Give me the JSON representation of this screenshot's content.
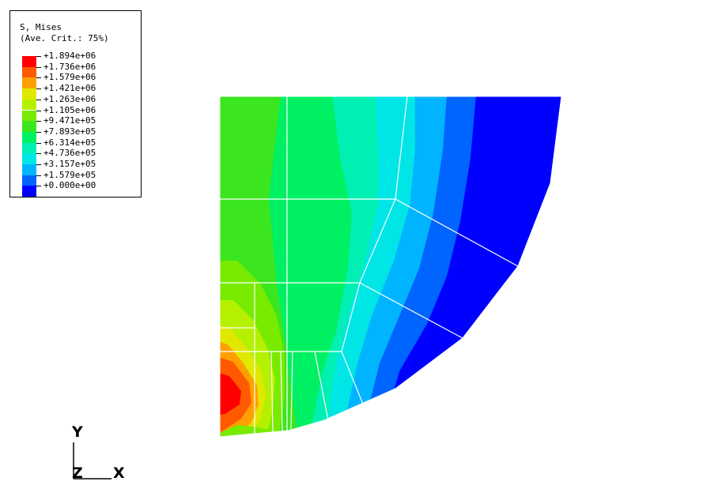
{
  "legend": {
    "title": "S, Mises",
    "subtitle": "(Ave. Crit.: 75%)",
    "entries": [
      {
        "label": "+1.894e+06",
        "color": "#ff0000"
      },
      {
        "label": "+1.736e+06",
        "color": "#ff5a00"
      },
      {
        "label": "+1.579e+06",
        "color": "#ffa000"
      },
      {
        "label": "+1.421e+06",
        "color": "#e0e800"
      },
      {
        "label": "+1.263e+06",
        "color": "#b4f000"
      },
      {
        "label": "+1.105e+06",
        "color": "#78eb00"
      },
      {
        "label": "+9.471e+05",
        "color": "#3be61e"
      },
      {
        "label": "+7.893e+05",
        "color": "#00f064"
      },
      {
        "label": "+6.314e+05",
        "color": "#00f0b4"
      },
      {
        "label": "+4.736e+05",
        "color": "#00e6e6"
      },
      {
        "label": "+3.157e+05",
        "color": "#00b4ff"
      },
      {
        "label": "+1.579e+05",
        "color": "#0064ff"
      },
      {
        "label": "+0.000e+00",
        "color": "#0000ff"
      }
    ]
  },
  "triad": {
    "y_label": "Y",
    "z_label": "Z",
    "x_label": "X"
  }
}
